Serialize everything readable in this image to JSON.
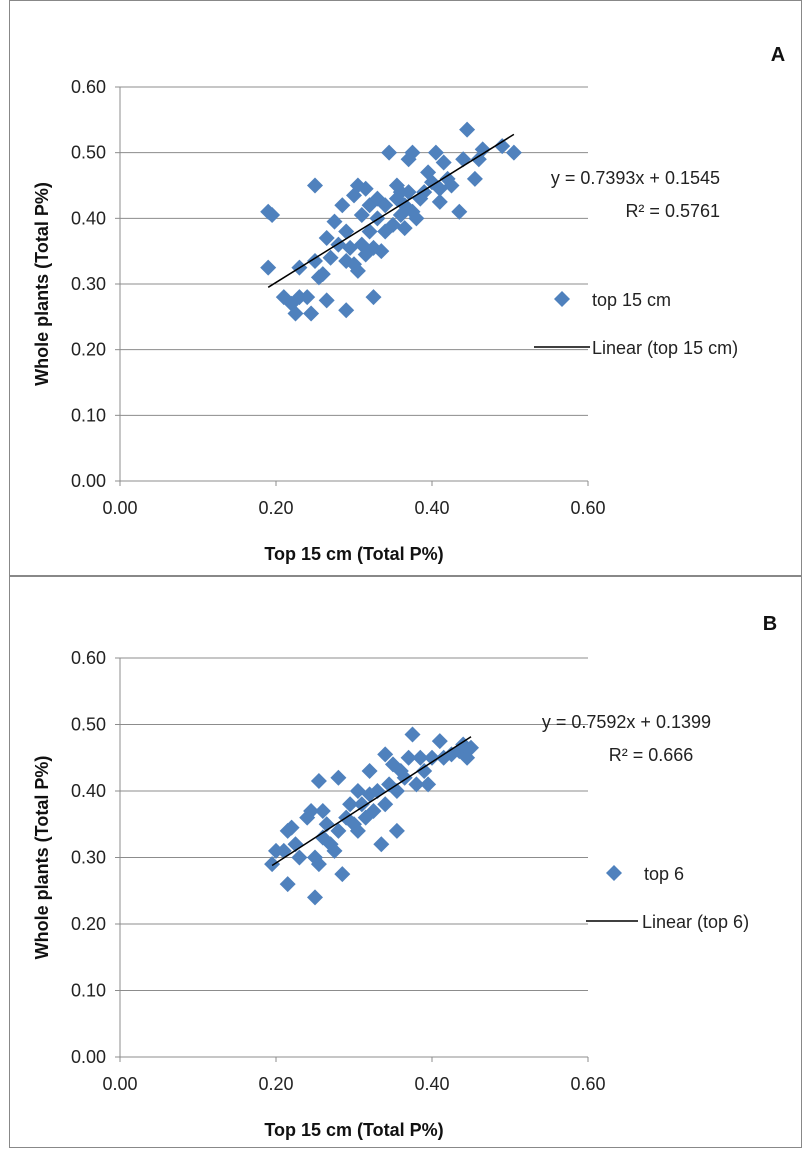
{
  "chart_data": [
    {
      "type": "scatter",
      "panel_label": "A",
      "xlabel": "Top 15 cm (Total P%)",
      "ylabel": "Whole plants (Total P%)",
      "xlim": [
        0,
        0.6
      ],
      "ylim": [
        0,
        0.6
      ],
      "x_ticks": [
        "0.00",
        "0.20",
        "0.40",
        "0.60"
      ],
      "y_ticks": [
        "0.00",
        "0.10",
        "0.20",
        "0.30",
        "0.40",
        "0.50",
        "0.60"
      ],
      "grid": "horizontal",
      "legend_position": "right",
      "equation": "y = 0.7393x + 0.1545",
      "r_squared": "R² = 0.5761",
      "series": [
        {
          "name": "top 15 cm",
          "color": "#4f81bd",
          "marker": "diamond",
          "points": [
            [
              0.19,
              0.41
            ],
            [
              0.19,
              0.325
            ],
            [
              0.195,
              0.405
            ],
            [
              0.21,
              0.28
            ],
            [
              0.22,
              0.27
            ],
            [
              0.225,
              0.255
            ],
            [
              0.23,
              0.325
            ],
            [
              0.23,
              0.28
            ],
            [
              0.24,
              0.28
            ],
            [
              0.245,
              0.255
            ],
            [
              0.25,
              0.45
            ],
            [
              0.25,
              0.335
            ],
            [
              0.255,
              0.31
            ],
            [
              0.26,
              0.315
            ],
            [
              0.265,
              0.275
            ],
            [
              0.265,
              0.37
            ],
            [
              0.27,
              0.34
            ],
            [
              0.275,
              0.395
            ],
            [
              0.28,
              0.36
            ],
            [
              0.285,
              0.42
            ],
            [
              0.29,
              0.335
            ],
            [
              0.29,
              0.26
            ],
            [
              0.29,
              0.38
            ],
            [
              0.295,
              0.355
            ],
            [
              0.3,
              0.33
            ],
            [
              0.3,
              0.435
            ],
            [
              0.305,
              0.45
            ],
            [
              0.305,
              0.32
            ],
            [
              0.31,
              0.36
            ],
            [
              0.31,
              0.405
            ],
            [
              0.315,
              0.445
            ],
            [
              0.315,
              0.345
            ],
            [
              0.32,
              0.38
            ],
            [
              0.32,
              0.42
            ],
            [
              0.325,
              0.28
            ],
            [
              0.325,
              0.355
            ],
            [
              0.33,
              0.4
            ],
            [
              0.33,
              0.43
            ],
            [
              0.335,
              0.35
            ],
            [
              0.34,
              0.38
            ],
            [
              0.34,
              0.42
            ],
            [
              0.345,
              0.5
            ],
            [
              0.35,
              0.39
            ],
            [
              0.355,
              0.43
            ],
            [
              0.355,
              0.45
            ],
            [
              0.36,
              0.405
            ],
            [
              0.36,
              0.44
            ],
            [
              0.365,
              0.385
            ],
            [
              0.365,
              0.42
            ],
            [
              0.37,
              0.44
            ],
            [
              0.37,
              0.49
            ],
            [
              0.375,
              0.5
            ],
            [
              0.375,
              0.41
            ],
            [
              0.38,
              0.4
            ],
            [
              0.385,
              0.43
            ],
            [
              0.39,
              0.44
            ],
            [
              0.395,
              0.47
            ],
            [
              0.4,
              0.455
            ],
            [
              0.405,
              0.5
            ],
            [
              0.41,
              0.445
            ],
            [
              0.41,
              0.425
            ],
            [
              0.415,
              0.485
            ],
            [
              0.42,
              0.46
            ],
            [
              0.425,
              0.45
            ],
            [
              0.435,
              0.41
            ],
            [
              0.44,
              0.49
            ],
            [
              0.445,
              0.535
            ],
            [
              0.455,
              0.46
            ],
            [
              0.46,
              0.49
            ],
            [
              0.465,
              0.505
            ],
            [
              0.49,
              0.51
            ],
            [
              0.505,
              0.5
            ]
          ]
        },
        {
          "name": "Linear (top 15 cm)",
          "type": "line",
          "color": "#000000",
          "x_range": [
            0.19,
            0.505
          ],
          "slope": 0.7393,
          "intercept": 0.1545
        }
      ]
    },
    {
      "type": "scatter",
      "panel_label": "B",
      "xlabel": "Top 15 cm (Total P%)",
      "ylabel": "Whole plants (Total P%)",
      "xlim": [
        0,
        0.6
      ],
      "ylim": [
        0,
        0.6
      ],
      "x_ticks": [
        "0.00",
        "0.20",
        "0.40",
        "0.60"
      ],
      "y_ticks": [
        "0.00",
        "0.10",
        "0.20",
        "0.30",
        "0.40",
        "0.50",
        "0.60"
      ],
      "grid": "horizontal",
      "legend_position": "right",
      "equation": "y = 0.7592x + 0.1399",
      "r_squared": "R² = 0.666",
      "series": [
        {
          "name": "top 6",
          "color": "#4f81bd",
          "marker": "diamond",
          "points": [
            [
              0.195,
              0.29
            ],
            [
              0.2,
              0.31
            ],
            [
              0.21,
              0.31
            ],
            [
              0.215,
              0.26
            ],
            [
              0.215,
              0.34
            ],
            [
              0.22,
              0.345
            ],
            [
              0.225,
              0.32
            ],
            [
              0.23,
              0.3
            ],
            [
              0.24,
              0.36
            ],
            [
              0.245,
              0.37
            ],
            [
              0.25,
              0.24
            ],
            [
              0.25,
              0.3
            ],
            [
              0.255,
              0.415
            ],
            [
              0.255,
              0.29
            ],
            [
              0.26,
              0.33
            ],
            [
              0.26,
              0.37
            ],
            [
              0.265,
              0.35
            ],
            [
              0.27,
              0.32
            ],
            [
              0.275,
              0.31
            ],
            [
              0.28,
              0.34
            ],
            [
              0.28,
              0.42
            ],
            [
              0.285,
              0.275
            ],
            [
              0.29,
              0.36
            ],
            [
              0.295,
              0.38
            ],
            [
              0.3,
              0.35
            ],
            [
              0.305,
              0.4
            ],
            [
              0.305,
              0.34
            ],
            [
              0.31,
              0.38
            ],
            [
              0.315,
              0.36
            ],
            [
              0.32,
              0.395
            ],
            [
              0.32,
              0.43
            ],
            [
              0.325,
              0.37
            ],
            [
              0.33,
              0.4
            ],
            [
              0.335,
              0.32
            ],
            [
              0.34,
              0.455
            ],
            [
              0.34,
              0.38
            ],
            [
              0.345,
              0.41
            ],
            [
              0.35,
              0.44
            ],
            [
              0.355,
              0.34
            ],
            [
              0.355,
              0.4
            ],
            [
              0.36,
              0.43
            ],
            [
              0.365,
              0.42
            ],
            [
              0.37,
              0.45
            ],
            [
              0.375,
              0.485
            ],
            [
              0.38,
              0.41
            ],
            [
              0.385,
              0.45
            ],
            [
              0.39,
              0.43
            ],
            [
              0.395,
              0.41
            ],
            [
              0.4,
              0.45
            ],
            [
              0.41,
              0.475
            ],
            [
              0.415,
              0.45
            ],
            [
              0.425,
              0.455
            ],
            [
              0.435,
              0.46
            ],
            [
              0.44,
              0.47
            ],
            [
              0.445,
              0.45
            ],
            [
              0.45,
              0.465
            ]
          ]
        },
        {
          "name": "Linear (top 6)",
          "type": "line",
          "color": "#000000",
          "x_range": [
            0.195,
            0.45
          ],
          "slope": 0.7592,
          "intercept": 0.1399
        }
      ]
    }
  ]
}
